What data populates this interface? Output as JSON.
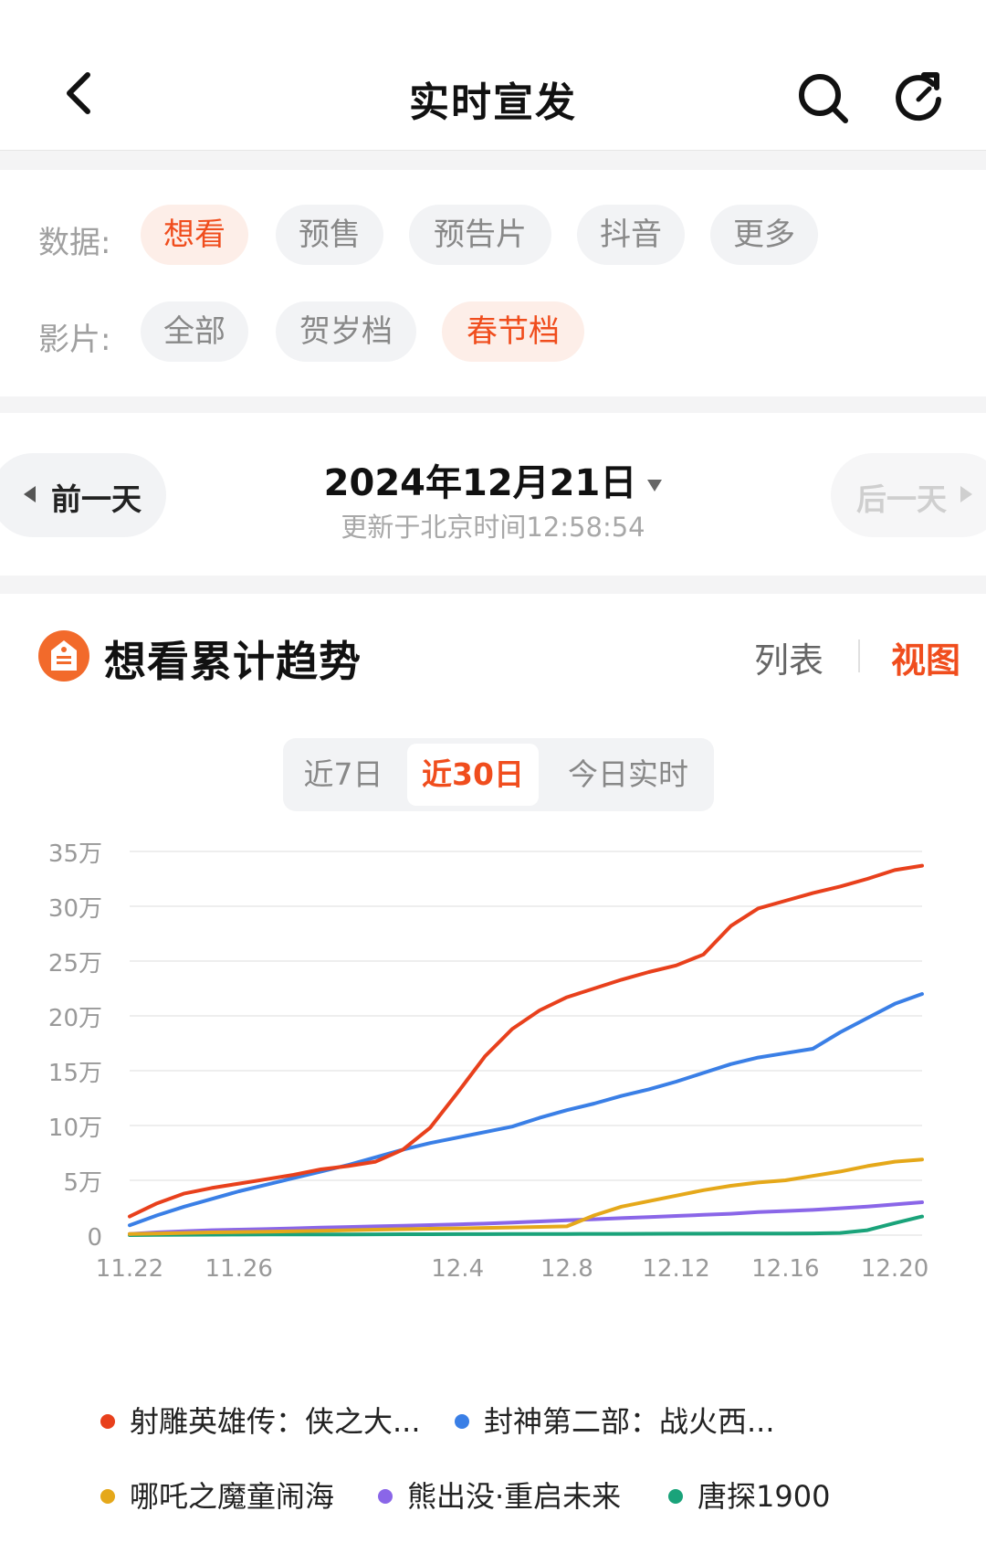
{
  "header": {
    "title": "实时宣发"
  },
  "filters": {
    "data_label": "数据:",
    "data_chips": [
      {
        "label": "想看",
        "active": true
      },
      {
        "label": "预售",
        "active": false
      },
      {
        "label": "预告片",
        "active": false
      },
      {
        "label": "抖音",
        "active": false
      },
      {
        "label": "更多",
        "active": false
      }
    ],
    "film_label": "影片:",
    "film_chips": [
      {
        "label": "全部",
        "active": false
      },
      {
        "label": "贺岁档",
        "active": false
      },
      {
        "label": "春节档",
        "active": true
      }
    ]
  },
  "date_nav": {
    "prev_label": "前一天",
    "date": "2024年12月21日",
    "updated": "更新于北京时间12:58:54",
    "next_label": "后一天"
  },
  "chart_card": {
    "title": "想看累计趋势",
    "view_list": "列表",
    "view_chart": "视图",
    "ranges": [
      {
        "label": "近7日",
        "active": false
      },
      {
        "label": "近30日",
        "active": true
      },
      {
        "label": "今日实时",
        "active": false
      }
    ]
  },
  "colors": {
    "accent": "#f04d1d",
    "series": [
      "#e8401c",
      "#3a7fe6",
      "#e5a81a",
      "#8a66e8",
      "#1aa37a"
    ]
  },
  "icons": {
    "back": "chevron-left-icon",
    "search": "search-icon",
    "refresh": "refresh-icon",
    "card": "ticket-icon"
  },
  "chart_data": {
    "type": "line",
    "title": "想看累计趋势",
    "x": [
      "11.22",
      "11.23",
      "11.24",
      "11.25",
      "11.26",
      "11.27",
      "11.28",
      "11.29",
      "11.30",
      "12.1",
      "12.2",
      "12.3",
      "12.4",
      "12.5",
      "12.6",
      "12.7",
      "12.8",
      "12.9",
      "12.10",
      "12.11",
      "12.12",
      "12.13",
      "12.14",
      "12.15",
      "12.16",
      "12.17",
      "12.18",
      "12.19",
      "12.20",
      "12.21"
    ],
    "x_tick_labels": [
      "11.22",
      "11.26",
      "12.4",
      "12.8",
      "12.12",
      "12.16",
      "12.20"
    ],
    "y_ticks": [
      0,
      50000,
      100000,
      150000,
      200000,
      250000,
      300000,
      350000
    ],
    "y_tick_labels": [
      "0",
      "5万",
      "10万",
      "15万",
      "20万",
      "25万",
      "30万",
      "35万"
    ],
    "ylim": [
      0,
      350000
    ],
    "grid": true,
    "legend_position": "bottom",
    "series": [
      {
        "name": "射雕英雄传：侠之大...",
        "values": [
          17000,
          29000,
          38000,
          43000,
          47000,
          51000,
          55000,
          60000,
          63000,
          67000,
          78000,
          98000,
          130000,
          163000,
          188000,
          205000,
          217000,
          225000,
          233000,
          240000,
          246000,
          256000,
          282000,
          298000,
          305000,
          312000,
          318000,
          325000,
          333000,
          337000
        ]
      },
      {
        "name": "封神第二部：战火西...",
        "values": [
          9000,
          18000,
          26000,
          33000,
          40000,
          46000,
          52000,
          58000,
          64000,
          71000,
          78000,
          84000,
          89000,
          94000,
          99000,
          107000,
          114000,
          120000,
          127000,
          133000,
          140000,
          148000,
          156000,
          162000,
          166000,
          170000,
          185000,
          198000,
          211000,
          220000
        ]
      },
      {
        "name": "哪吒之魔童闹海",
        "values": [
          1000,
          1500,
          2000,
          2500,
          2800,
          3200,
          3600,
          4000,
          4500,
          5000,
          5400,
          5800,
          6200,
          6600,
          7000,
          7500,
          8000,
          18000,
          26000,
          31000,
          36000,
          41000,
          45000,
          48000,
          50000,
          54000,
          58000,
          63000,
          67000,
          69000
        ]
      },
      {
        "name": "熊出没·重启未来",
        "values": [
          1000,
          2500,
          3500,
          4500,
          5000,
          5500,
          6200,
          6800,
          7400,
          8000,
          8600,
          9200,
          9800,
          10500,
          11500,
          12500,
          13500,
          14500,
          15500,
          16500,
          17500,
          18500,
          19500,
          21000,
          22000,
          23000,
          24500,
          26000,
          28000,
          30000
        ]
      },
      {
        "name": "唐探1900",
        "values": [
          0,
          200,
          300,
          400,
          500,
          550,
          600,
          650,
          700,
          750,
          800,
          850,
          900,
          950,
          1000,
          1050,
          1100,
          1150,
          1200,
          1250,
          1300,
          1350,
          1400,
          1450,
          1500,
          1600,
          2000,
          4500,
          11000,
          17000
        ]
      }
    ]
  }
}
